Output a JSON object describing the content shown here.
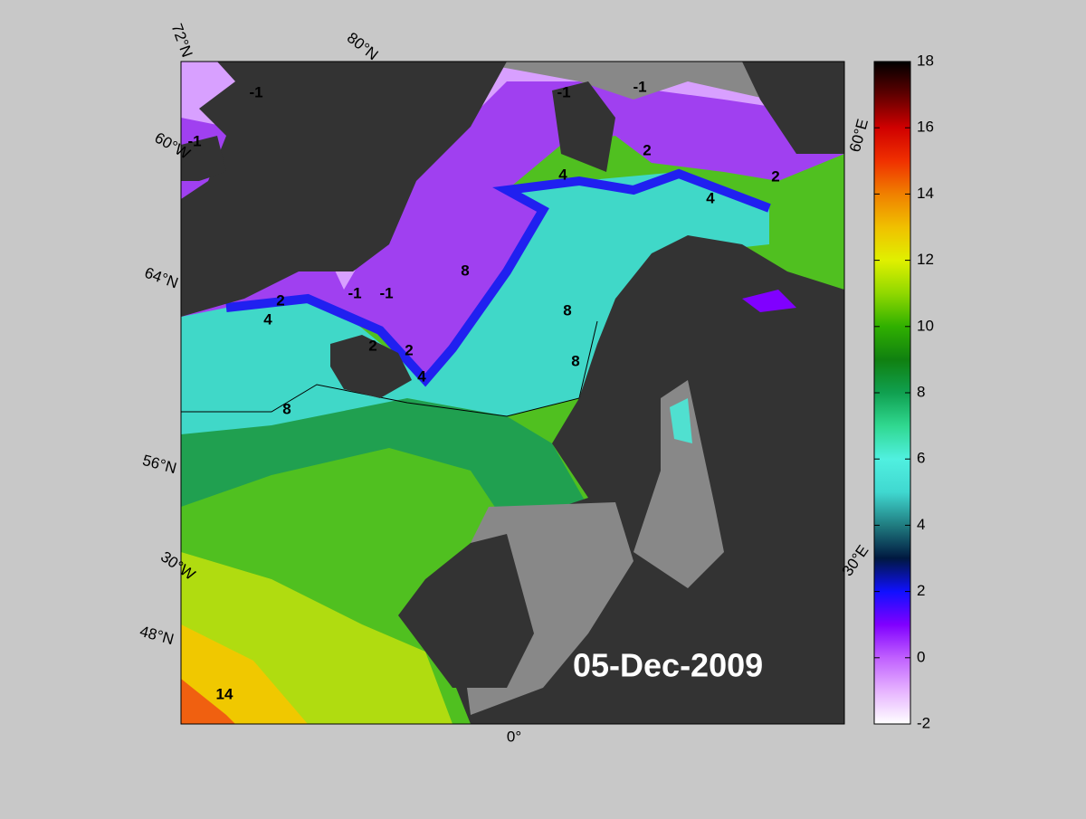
{
  "map": {
    "date": "05-Dec-2009",
    "graticule_labels": [
      "72°N",
      "80°N",
      "60°W",
      "64°N",
      "56°N",
      "30°W",
      "48°N",
      "0°",
      "30°E",
      "60°E"
    ],
    "contour_labels": [
      -1,
      -1,
      -1,
      -1,
      -1,
      -1,
      2,
      2,
      2,
      2,
      2,
      4,
      4,
      4,
      4,
      8,
      8,
      8,
      8,
      14
    ],
    "colorbar": {
      "lim": [
        -2,
        18
      ],
      "ticks": [
        -2,
        0,
        2,
        4,
        6,
        8,
        10,
        12,
        14,
        16,
        18
      ],
      "colormap": [
        "#ffffff",
        "#e6b3ff",
        "#c060ff",
        "#8000ff",
        "#1010ff",
        "#001840",
        "#207c80",
        "#40d8d0",
        "#50f0e0",
        "#30d890",
        "#10a050",
        "#108010",
        "#30b000",
        "#90d800",
        "#e0f000",
        "#f0c000",
        "#f08000",
        "#f03000",
        "#d00000",
        "#600000",
        "#000000"
      ]
    }
  }
}
